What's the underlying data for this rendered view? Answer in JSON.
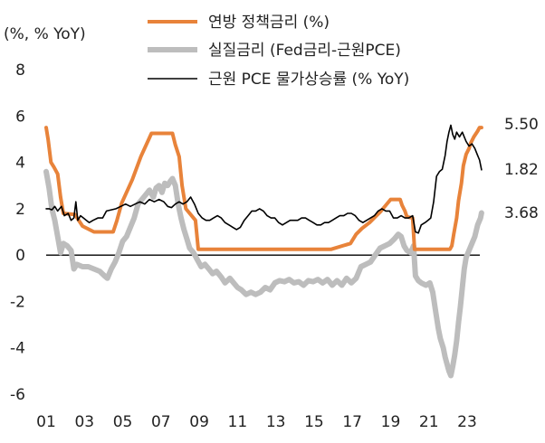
{
  "chart_data": {
    "type": "line",
    "title": "",
    "ylabel": "(%, % YoY)",
    "xlabel": "",
    "ylim": [
      -6,
      8
    ],
    "xlim": [
      2001.0,
      2023.9
    ],
    "yticks": [
      8,
      6,
      4,
      2,
      0,
      -2,
      -4,
      -6
    ],
    "xticks": [
      {
        "label": "01",
        "x": 2001
      },
      {
        "label": "03",
        "x": 2003
      },
      {
        "label": "05",
        "x": 2005
      },
      {
        "label": "07",
        "x": 2007
      },
      {
        "label": "09",
        "x": 2009
      },
      {
        "label": "11",
        "x": 2011
      },
      {
        "label": "13",
        "x": 2013
      },
      {
        "label": "15",
        "x": 2015
      },
      {
        "label": "17",
        "x": 2017
      },
      {
        "label": "19",
        "x": 2019
      },
      {
        "label": "21",
        "x": 2021
      },
      {
        "label": "23",
        "x": 2023
      }
    ],
    "grid": false,
    "legend_position": "top",
    "series": [
      {
        "name": "연방 정책금리 (%)",
        "color": "#E8833A",
        "width": 4,
        "end_label": "5.50",
        "points": [
          [
            2001.0,
            5.5
          ],
          [
            2001.1,
            5.0
          ],
          [
            2001.25,
            4.0
          ],
          [
            2001.4,
            3.8
          ],
          [
            2001.6,
            3.5
          ],
          [
            2001.75,
            2.5
          ],
          [
            2001.9,
            1.8
          ],
          [
            2002.5,
            1.75
          ],
          [
            2002.9,
            1.25
          ],
          [
            2003.5,
            1.0
          ],
          [
            2004.5,
            1.0
          ],
          [
            2004.7,
            1.5
          ],
          [
            2004.95,
            2.25
          ],
          [
            2005.5,
            3.25
          ],
          [
            2005.95,
            4.25
          ],
          [
            2006.5,
            5.25
          ],
          [
            2007.6,
            5.25
          ],
          [
            2007.75,
            4.75
          ],
          [
            2007.95,
            4.25
          ],
          [
            2008.1,
            3.0
          ],
          [
            2008.3,
            2.0
          ],
          [
            2008.8,
            1.5
          ],
          [
            2008.95,
            0.25
          ],
          [
            2015.9,
            0.25
          ],
          [
            2016.9,
            0.5
          ],
          [
            2017.2,
            0.9
          ],
          [
            2017.5,
            1.15
          ],
          [
            2017.9,
            1.4
          ],
          [
            2018.2,
            1.65
          ],
          [
            2018.5,
            1.9
          ],
          [
            2018.75,
            2.15
          ],
          [
            2019.0,
            2.4
          ],
          [
            2019.5,
            2.4
          ],
          [
            2019.6,
            2.15
          ],
          [
            2019.75,
            1.9
          ],
          [
            2019.85,
            1.65
          ],
          [
            2020.15,
            1.6
          ],
          [
            2020.25,
            0.25
          ],
          [
            2022.1,
            0.25
          ],
          [
            2022.2,
            0.4
          ],
          [
            2022.3,
            0.9
          ],
          [
            2022.45,
            1.6
          ],
          [
            2022.55,
            2.35
          ],
          [
            2022.7,
            3.1
          ],
          [
            2022.8,
            3.85
          ],
          [
            2022.95,
            4.35
          ],
          [
            2023.1,
            4.6
          ],
          [
            2023.2,
            4.85
          ],
          [
            2023.35,
            5.1
          ],
          [
            2023.55,
            5.35
          ],
          [
            2023.65,
            5.5
          ],
          [
            2023.75,
            5.5
          ]
        ]
      },
      {
        "name": "실질금리 (Fed금리-근원PCE)",
        "color": "#BDBDBD",
        "width": 6,
        "end_label": "1.82",
        "points": [
          [
            2001.0,
            3.6
          ],
          [
            2001.15,
            2.9
          ],
          [
            2001.3,
            2.0
          ],
          [
            2001.45,
            1.5
          ],
          [
            2001.6,
            0.8
          ],
          [
            2001.75,
            0.1
          ],
          [
            2001.9,
            0.5
          ],
          [
            2002.1,
            0.4
          ],
          [
            2002.3,
            0.2
          ],
          [
            2002.45,
            -0.6
          ],
          [
            2002.6,
            -0.4
          ],
          [
            2002.9,
            -0.5
          ],
          [
            2003.2,
            -0.5
          ],
          [
            2003.5,
            -0.6
          ],
          [
            2003.8,
            -0.7
          ],
          [
            2004.05,
            -0.9
          ],
          [
            2004.2,
            -1.0
          ],
          [
            2004.4,
            -0.6
          ],
          [
            2004.6,
            -0.3
          ],
          [
            2004.8,
            0.1
          ],
          [
            2005.0,
            0.6
          ],
          [
            2005.2,
            0.8
          ],
          [
            2005.4,
            1.2
          ],
          [
            2005.6,
            1.6
          ],
          [
            2005.8,
            2.2
          ],
          [
            2006.0,
            2.4
          ],
          [
            2006.2,
            2.6
          ],
          [
            2006.4,
            2.8
          ],
          [
            2006.6,
            2.5
          ],
          [
            2006.75,
            2.9
          ],
          [
            2006.9,
            3.0
          ],
          [
            2007.05,
            2.7
          ],
          [
            2007.2,
            3.1
          ],
          [
            2007.35,
            3.0
          ],
          [
            2007.5,
            3.2
          ],
          [
            2007.6,
            3.3
          ],
          [
            2007.75,
            3.0
          ],
          [
            2007.9,
            2.2
          ],
          [
            2008.05,
            1.6
          ],
          [
            2008.2,
            1.1
          ],
          [
            2008.35,
            0.7
          ],
          [
            2008.5,
            0.3
          ],
          [
            2008.7,
            0.1
          ],
          [
            2008.9,
            -0.2
          ],
          [
            2009.1,
            -0.5
          ],
          [
            2009.3,
            -0.4
          ],
          [
            2009.5,
            -0.6
          ],
          [
            2009.7,
            -0.8
          ],
          [
            2009.9,
            -0.7
          ],
          [
            2010.15,
            -0.95
          ],
          [
            2010.35,
            -1.2
          ],
          [
            2010.6,
            -1.0
          ],
          [
            2010.8,
            -1.2
          ],
          [
            2011.0,
            -1.4
          ],
          [
            2011.2,
            -1.5
          ],
          [
            2011.45,
            -1.7
          ],
          [
            2011.7,
            -1.6
          ],
          [
            2011.95,
            -1.7
          ],
          [
            2012.2,
            -1.6
          ],
          [
            2012.45,
            -1.4
          ],
          [
            2012.7,
            -1.5
          ],
          [
            2012.95,
            -1.2
          ],
          [
            2013.2,
            -1.1
          ],
          [
            2013.45,
            -1.15
          ],
          [
            2013.7,
            -1.05
          ],
          [
            2013.95,
            -1.2
          ],
          [
            2014.2,
            -1.15
          ],
          [
            2014.45,
            -1.3
          ],
          [
            2014.7,
            -1.1
          ],
          [
            2014.95,
            -1.15
          ],
          [
            2015.2,
            -1.05
          ],
          [
            2015.45,
            -1.2
          ],
          [
            2015.7,
            -1.05
          ],
          [
            2015.95,
            -1.3
          ],
          [
            2016.2,
            -1.1
          ],
          [
            2016.45,
            -1.3
          ],
          [
            2016.7,
            -1.0
          ],
          [
            2016.95,
            -1.2
          ],
          [
            2017.2,
            -1.0
          ],
          [
            2017.45,
            -0.5
          ],
          [
            2017.7,
            -0.4
          ],
          [
            2017.95,
            -0.3
          ],
          [
            2018.2,
            0.0
          ],
          [
            2018.45,
            0.3
          ],
          [
            2018.7,
            0.4
          ],
          [
            2018.95,
            0.5
          ],
          [
            2019.2,
            0.7
          ],
          [
            2019.4,
            0.9
          ],
          [
            2019.55,
            0.8
          ],
          [
            2019.7,
            0.4
          ],
          [
            2019.85,
            0.2
          ],
          [
            2020.05,
            0.1
          ],
          [
            2020.2,
            0.4
          ],
          [
            2020.3,
            -0.9
          ],
          [
            2020.45,
            -1.1
          ],
          [
            2020.6,
            -1.2
          ],
          [
            2020.85,
            -1.3
          ],
          [
            2021.05,
            -1.2
          ],
          [
            2021.2,
            -1.6
          ],
          [
            2021.35,
            -2.4
          ],
          [
            2021.5,
            -3.2
          ],
          [
            2021.6,
            -3.6
          ],
          [
            2021.75,
            -4.0
          ],
          [
            2021.85,
            -4.4
          ],
          [
            2021.95,
            -4.7
          ],
          [
            2022.05,
            -5.0
          ],
          [
            2022.15,
            -5.2
          ],
          [
            2022.25,
            -4.8
          ],
          [
            2022.35,
            -4.3
          ],
          [
            2022.45,
            -3.7
          ],
          [
            2022.55,
            -2.9
          ],
          [
            2022.65,
            -2.2
          ],
          [
            2022.75,
            -1.4
          ],
          [
            2022.85,
            -0.6
          ],
          [
            2022.95,
            -0.1
          ],
          [
            2023.1,
            0.2
          ],
          [
            2023.25,
            0.5
          ],
          [
            2023.4,
            0.8
          ],
          [
            2023.55,
            1.3
          ],
          [
            2023.7,
            1.6
          ],
          [
            2023.75,
            1.82
          ]
        ]
      },
      {
        "name": "근원 PCE 물가상승률 (% YoY)",
        "color": "#000000",
        "width": 1.6,
        "end_label": "3.68",
        "points": [
          [
            2001.0,
            2.0
          ],
          [
            2001.15,
            2.0
          ],
          [
            2001.3,
            1.95
          ],
          [
            2001.45,
            2.1
          ],
          [
            2001.6,
            1.9
          ],
          [
            2001.8,
            2.1
          ],
          [
            2001.95,
            1.7
          ],
          [
            2002.15,
            1.8
          ],
          [
            2002.3,
            1.5
          ],
          [
            2002.45,
            1.6
          ],
          [
            2002.55,
            2.3
          ],
          [
            2002.65,
            1.5
          ],
          [
            2002.8,
            1.7
          ],
          [
            2002.95,
            1.6
          ],
          [
            2003.1,
            1.5
          ],
          [
            2003.25,
            1.4
          ],
          [
            2003.45,
            1.5
          ],
          [
            2003.7,
            1.6
          ],
          [
            2003.95,
            1.6
          ],
          [
            2004.15,
            1.9
          ],
          [
            2004.4,
            1.95
          ],
          [
            2004.65,
            2.0
          ],
          [
            2004.9,
            2.1
          ],
          [
            2005.15,
            2.2
          ],
          [
            2005.4,
            2.1
          ],
          [
            2005.65,
            2.2
          ],
          [
            2005.9,
            2.3
          ],
          [
            2006.15,
            2.2
          ],
          [
            2006.4,
            2.4
          ],
          [
            2006.65,
            2.3
          ],
          [
            2006.9,
            2.4
          ],
          [
            2007.15,
            2.3
          ],
          [
            2007.35,
            2.1
          ],
          [
            2007.55,
            2.05
          ],
          [
            2007.75,
            2.2
          ],
          [
            2007.95,
            2.3
          ],
          [
            2008.15,
            2.2
          ],
          [
            2008.35,
            2.3
          ],
          [
            2008.55,
            2.5
          ],
          [
            2008.75,
            2.2
          ],
          [
            2008.95,
            1.8
          ],
          [
            2009.15,
            1.6
          ],
          [
            2009.35,
            1.5
          ],
          [
            2009.55,
            1.5
          ],
          [
            2009.75,
            1.6
          ],
          [
            2009.95,
            1.7
          ],
          [
            2010.15,
            1.6
          ],
          [
            2010.35,
            1.4
          ],
          [
            2010.55,
            1.3
          ],
          [
            2010.75,
            1.2
          ],
          [
            2010.95,
            1.1
          ],
          [
            2011.15,
            1.2
          ],
          [
            2011.35,
            1.5
          ],
          [
            2011.55,
            1.7
          ],
          [
            2011.75,
            1.9
          ],
          [
            2011.95,
            1.9
          ],
          [
            2012.15,
            2.0
          ],
          [
            2012.35,
            1.9
          ],
          [
            2012.55,
            1.7
          ],
          [
            2012.75,
            1.6
          ],
          [
            2012.95,
            1.6
          ],
          [
            2013.15,
            1.4
          ],
          [
            2013.35,
            1.3
          ],
          [
            2013.55,
            1.4
          ],
          [
            2013.75,
            1.5
          ],
          [
            2013.95,
            1.5
          ],
          [
            2014.15,
            1.5
          ],
          [
            2014.35,
            1.6
          ],
          [
            2014.55,
            1.6
          ],
          [
            2014.75,
            1.5
          ],
          [
            2014.95,
            1.4
          ],
          [
            2015.15,
            1.3
          ],
          [
            2015.35,
            1.3
          ],
          [
            2015.55,
            1.4
          ],
          [
            2015.75,
            1.4
          ],
          [
            2015.95,
            1.5
          ],
          [
            2016.15,
            1.6
          ],
          [
            2016.35,
            1.7
          ],
          [
            2016.55,
            1.7
          ],
          [
            2016.75,
            1.8
          ],
          [
            2016.95,
            1.8
          ],
          [
            2017.15,
            1.7
          ],
          [
            2017.35,
            1.5
          ],
          [
            2017.55,
            1.4
          ],
          [
            2017.75,
            1.5
          ],
          [
            2017.95,
            1.6
          ],
          [
            2018.15,
            1.7
          ],
          [
            2018.35,
            1.9
          ],
          [
            2018.55,
            2.0
          ],
          [
            2018.75,
            1.9
          ],
          [
            2018.95,
            1.9
          ],
          [
            2019.15,
            1.6
          ],
          [
            2019.35,
            1.6
          ],
          [
            2019.55,
            1.7
          ],
          [
            2019.75,
            1.6
          ],
          [
            2019.95,
            1.6
          ],
          [
            2020.15,
            1.7
          ],
          [
            2020.3,
            1.0
          ],
          [
            2020.45,
            0.95
          ],
          [
            2020.6,
            1.3
          ],
          [
            2020.8,
            1.4
          ],
          [
            2020.95,
            1.5
          ],
          [
            2021.1,
            1.6
          ],
          [
            2021.25,
            2.3
          ],
          [
            2021.4,
            3.4
          ],
          [
            2021.55,
            3.6
          ],
          [
            2021.7,
            3.7
          ],
          [
            2021.85,
            4.3
          ],
          [
            2021.95,
            4.9
          ],
          [
            2022.05,
            5.3
          ],
          [
            2022.15,
            5.6
          ],
          [
            2022.25,
            5.2
          ],
          [
            2022.35,
            5.0
          ],
          [
            2022.45,
            5.3
          ],
          [
            2022.6,
            5.1
          ],
          [
            2022.75,
            5.3
          ],
          [
            2022.85,
            5.1
          ],
          [
            2022.95,
            4.9
          ],
          [
            2023.1,
            4.7
          ],
          [
            2023.25,
            4.8
          ],
          [
            2023.4,
            4.6
          ],
          [
            2023.55,
            4.3
          ],
          [
            2023.65,
            4.1
          ],
          [
            2023.75,
            3.68
          ]
        ]
      }
    ]
  }
}
